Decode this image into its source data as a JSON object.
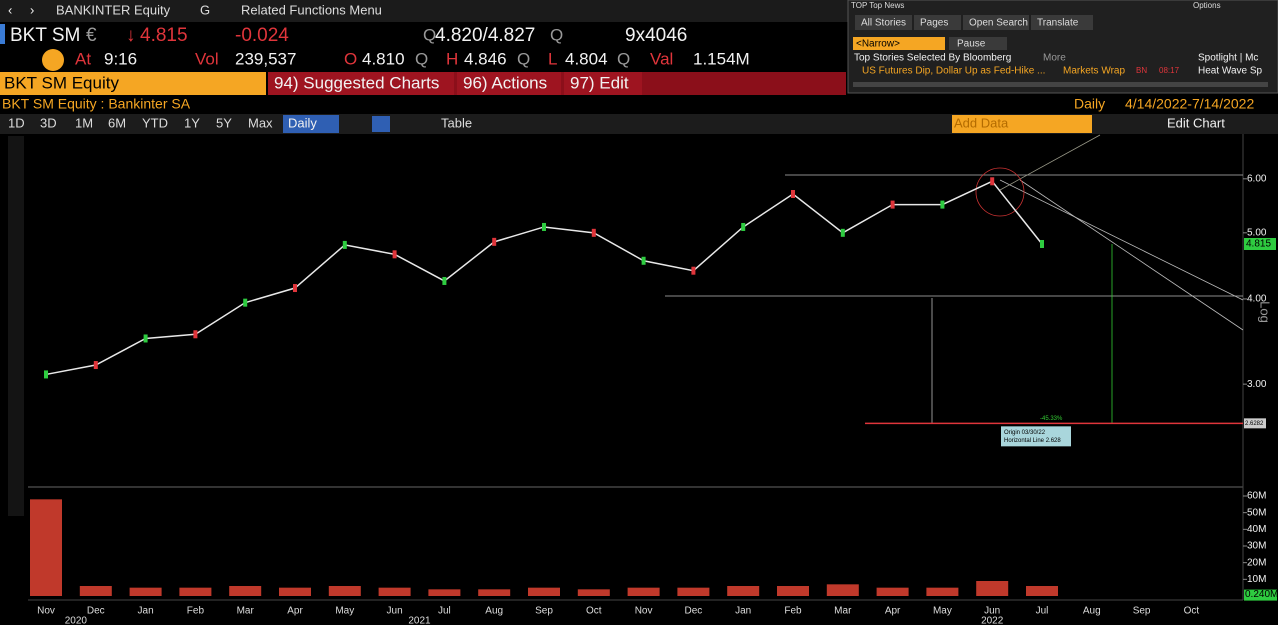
{
  "nav": {
    "security": "BANKINTER Equity",
    "menu": "G",
    "related": "Related Functions Menu"
  },
  "quote": {
    "ticker": "BKT SM",
    "currency": "€",
    "last": "4.815",
    "change": "-0.024",
    "q": "Q",
    "bid_ask": "4.820/4.827",
    "size": "9x4046",
    "at_label": "At",
    "time": "9:16",
    "vol_label": "Vol",
    "volume": "239,537",
    "open_label": "O",
    "open": "4.810",
    "high_label": "H",
    "high": "4.846",
    "low_label": "L",
    "low": "4.804",
    "val_label": "Val",
    "value": "1.154M"
  },
  "menu": {
    "security": "BKT SM Equity",
    "items": [
      "94) Suggested Charts",
      "96) Actions",
      "97) Edit"
    ]
  },
  "header": {
    "title": "BKT SM Equity : Bankinter SA",
    "frequency": "Daily",
    "range": "4/14/2022-7/14/2022"
  },
  "toolbar": {
    "periods": [
      "1D",
      "3D",
      "1M",
      "6M",
      "YTD",
      "1Y",
      "5Y",
      "Max"
    ],
    "frequency": "Daily",
    "table": "Table",
    "add_data": "Add Data",
    "edit_chart": "Edit Chart"
  },
  "news": {
    "title": "TOP Top News",
    "options": "Options",
    "tabs": [
      "All Stories",
      "Pages",
      "Open Search",
      "Translate"
    ],
    "narrow": "<Narrow>",
    "pause": "Pause",
    "heading": "Top Stories Selected By Bloomberg",
    "more": "More",
    "headline": "US Futures Dip, Dollar Up as Fed-Hike ...",
    "tag": "Markets Wrap",
    "source": "BN",
    "time": "08:17",
    "side": [
      "Spotlight | Mc",
      "Heat Wave Sp"
    ]
  },
  "chart_data": {
    "type": "line",
    "color": "#e8e8e8",
    "log": true,
    "categories": [
      "Nov",
      "Dec",
      "Jan",
      "Feb",
      "Mar",
      "Apr",
      "May",
      "Jun",
      "Jul",
      "Aug",
      "Sep",
      "Oct",
      "Nov",
      "Dec",
      "Jan",
      "Feb",
      "Mar",
      "Apr",
      "May",
      "Jun",
      "Jul",
      "Aug",
      "Sep",
      "Oct"
    ],
    "year_labels": [
      "2020",
      "2021",
      "2022"
    ],
    "values": [
      3.1,
      3.2,
      3.5,
      3.55,
      3.95,
      4.15,
      4.8,
      4.65,
      4.25,
      4.85,
      5.1,
      5.0,
      4.55,
      4.4,
      5.1,
      5.7,
      5.0,
      5.5,
      5.5,
      5.95,
      4.815,
      null,
      null,
      null
    ],
    "ylim": [
      2.12,
      6.98
    ],
    "yticks": [
      {
        "value": 3,
        "label": "3.00"
      },
      {
        "value": 4,
        "label": "4.00"
      },
      {
        "value": 5,
        "label": "5.00"
      },
      {
        "value": 6,
        "label": "6.00"
      }
    ],
    "last_price": 4.815,
    "hline": 2.6282,
    "annotations": [
      "Origin 03/30/22",
      "Horizontal Line 2.628",
      "-45.33%"
    ],
    "axis_label": "Log",
    "volume": {
      "color": "#c0392b",
      "values": [
        58,
        6,
        5,
        5,
        6,
        5,
        6,
        5,
        4,
        4,
        5,
        4,
        5,
        5,
        6,
        6,
        7,
        5,
        5,
        9,
        6,
        null,
        null,
        null
      ],
      "ylim": [
        0,
        63.6
      ],
      "yticks": [
        {
          "value": 10,
          "label": "10M"
        },
        {
          "value": 20,
          "label": "20M"
        },
        {
          "value": 30,
          "label": "30M"
        },
        {
          "value": 40,
          "label": "40M"
        },
        {
          "value": 50,
          "label": "50M"
        },
        {
          "value": 60,
          "label": "60M"
        }
      ],
      "last": {
        "value": 0.24,
        "label": "0.240M"
      }
    }
  }
}
